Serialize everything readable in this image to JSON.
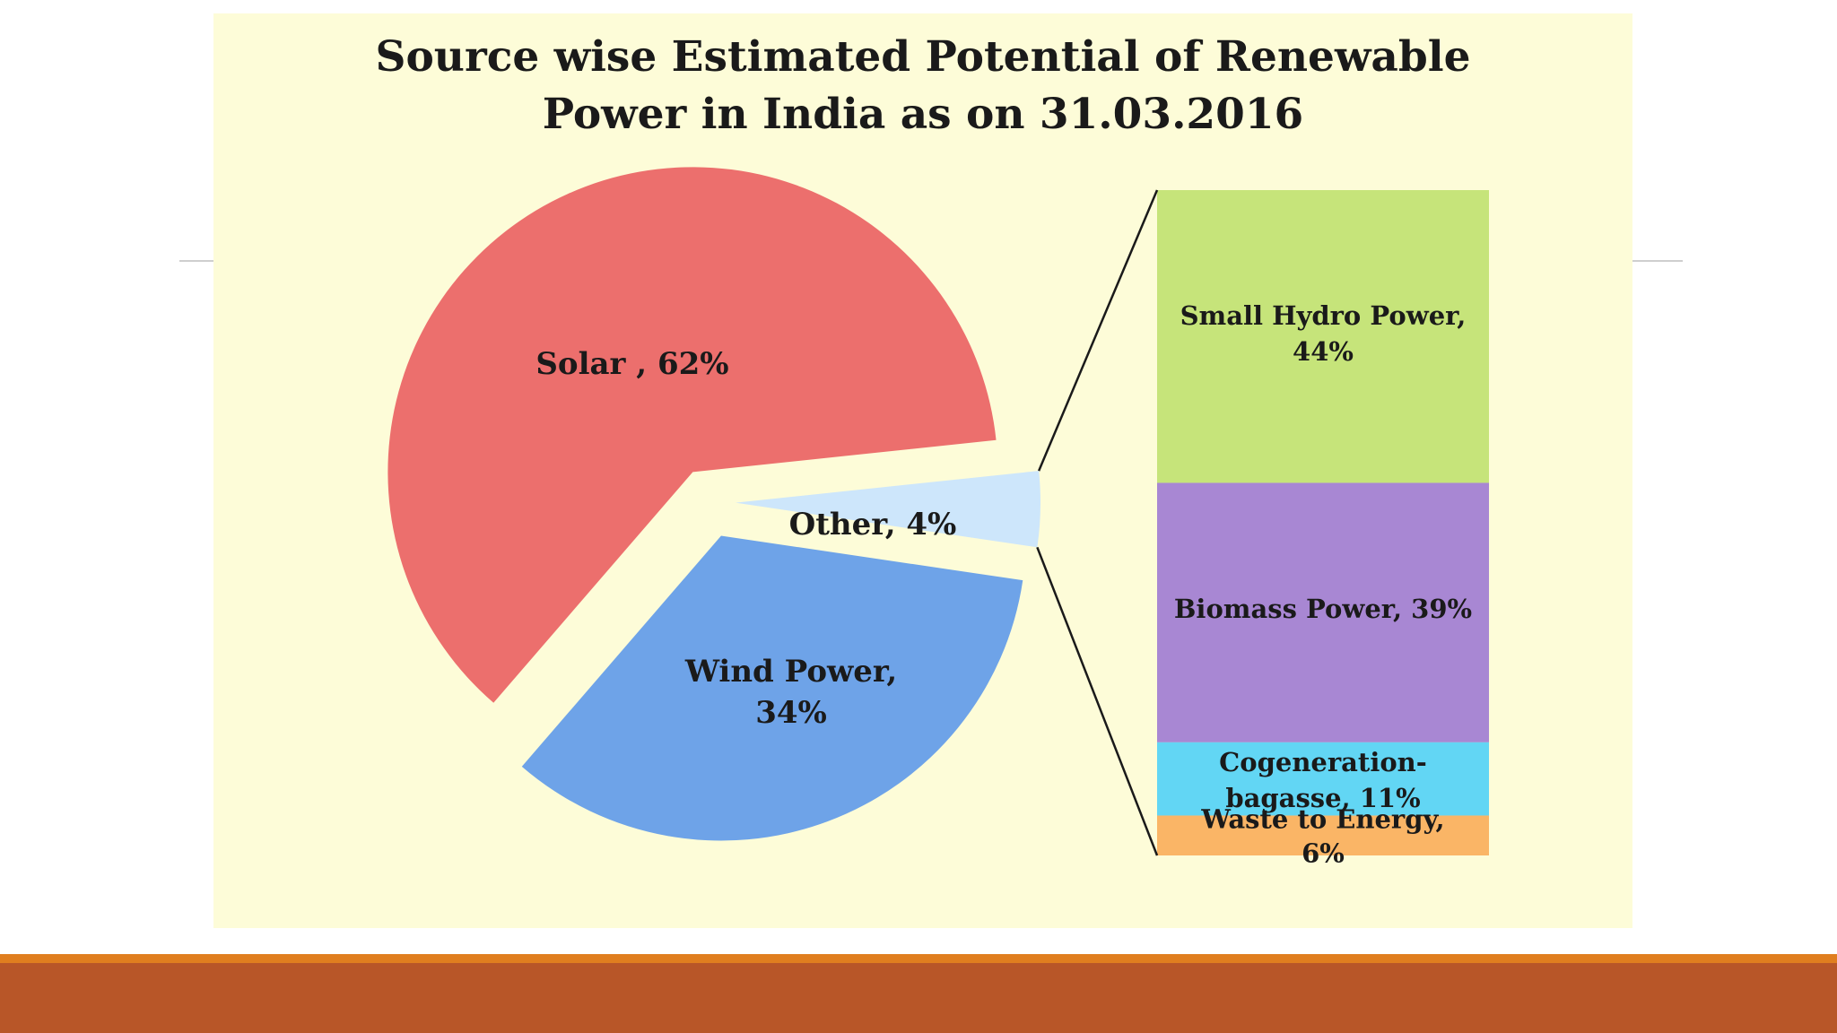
{
  "chart_data": {
    "type": "pie",
    "title_lines": [
      "Source wise Estimated Potential of Renewable",
      "Power in India as on 31.03.2016"
    ],
    "pie": {
      "slices": [
        {
          "name": "Solar",
          "label": "Solar ,  62%",
          "value": 62,
          "color": "#ec6f6d"
        },
        {
          "name": "Other",
          "label": "Other, 4%",
          "value": 4,
          "color": "#cde6fb"
        },
        {
          "name": "Wind Power",
          "label_lines": [
            "Wind Power,",
            "34%"
          ],
          "value": 34,
          "color": "#6ea3e8"
        }
      ]
    },
    "breakdown_of": "Other",
    "breakdown": {
      "type": "stacked_bar",
      "segments": [
        {
          "name": "Small Hydro Power",
          "label_lines": [
            "Small Hydro Power,",
            "44%"
          ],
          "value": 44,
          "color": "#c6e47a"
        },
        {
          "name": "Biomass Power",
          "label_lines": [
            "Biomass Power, 39%"
          ],
          "value": 39,
          "color": "#a887d3"
        },
        {
          "name": "Cogeneration-bagasse",
          "label_lines": [
            "Cogeneration-",
            "bagasse, 11%"
          ],
          "value": 11,
          "color": "#62d6f4"
        },
        {
          "name": "Waste to Energy",
          "label_lines": [
            "Waste to Energy,",
            "6%"
          ],
          "value": 6,
          "color": "#fab566"
        }
      ]
    }
  },
  "theme": {
    "panel_background": "#fdfcd8",
    "accent_orange": "#e07e1f",
    "accent_rust": "#b85628"
  }
}
